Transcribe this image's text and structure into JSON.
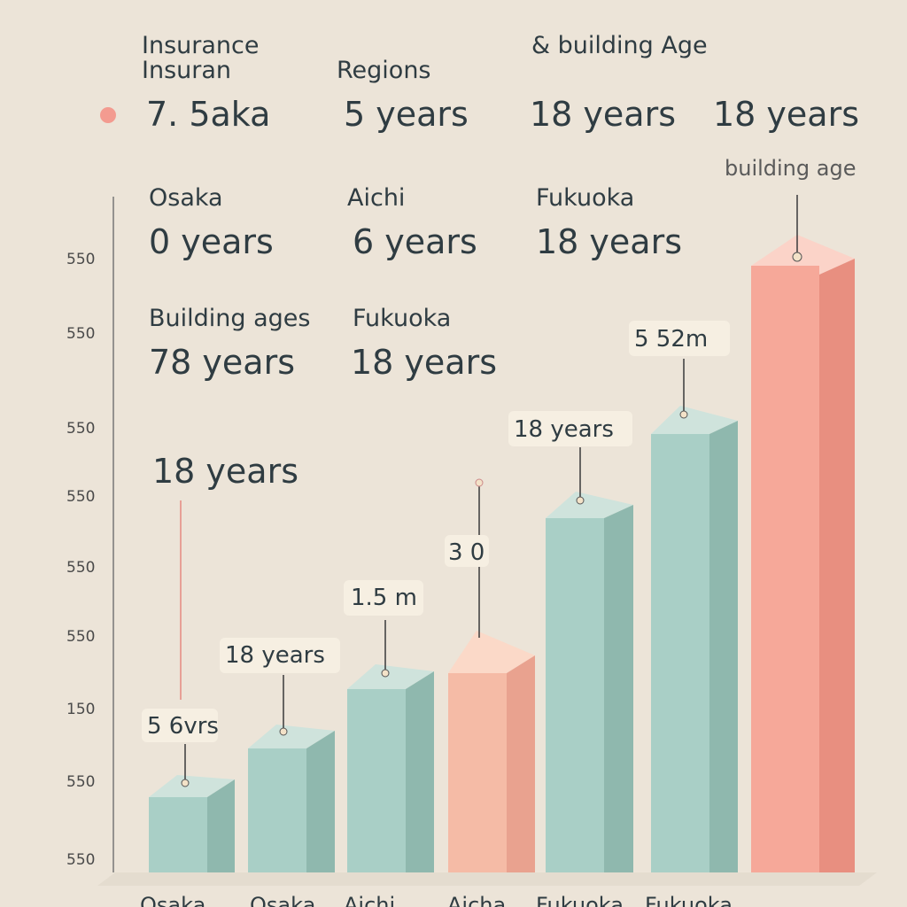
{
  "header": {
    "title_lines": [
      "Insurance",
      "Insuran"
    ],
    "subtitle": "& building Age",
    "regions_label": "Regions",
    "marker_label": "7. 5aka",
    "values": [
      "5 years",
      "18 years",
      "18 years"
    ]
  },
  "regions": [
    {
      "name": "Osaka",
      "age": "0 years"
    },
    {
      "name": "Aichi",
      "age": "6 years"
    },
    {
      "name": "Fukuoka",
      "age": "18 years"
    }
  ],
  "building_ages": {
    "label": "Building ages",
    "value": "78 years",
    "region": "Fukuoka",
    "region_value": "18 years"
  },
  "note": "18 years",
  "corner_label": "building age",
  "bar_labels": [
    "5 6vrs",
    "18 years",
    "1.5 m",
    "3 0",
    "18 years",
    "5 52m"
  ],
  "y_axis_labels": [
    "550",
    "550",
    "550",
    "550",
    "550",
    "550",
    "150",
    "550",
    "550"
  ],
  "x_axis_labels": [
    "Osaka",
    "Osaka",
    "Aichi",
    "Aicha",
    "Fukuoka",
    "Fukuoka"
  ]
}
